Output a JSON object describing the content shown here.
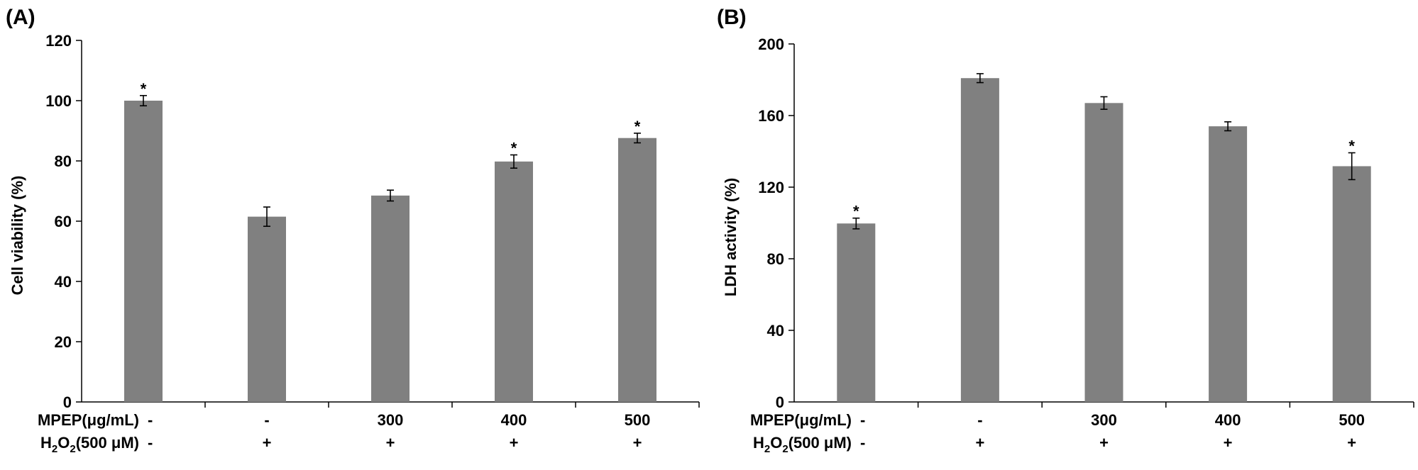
{
  "chart_data": [
    {
      "type": "bar",
      "panel_label": "(A)",
      "ylabel": "Cell viability (%)",
      "ylim": [
        0,
        120
      ],
      "yticks": [
        0,
        20,
        40,
        60,
        80,
        100,
        120
      ],
      "ytick_labels": [
        "0",
        "20",
        "40",
        "60",
        "80",
        "100",
        "120"
      ],
      "values": [
        100,
        61.5,
        68.5,
        79.8,
        87.6
      ],
      "errors": [
        1.7,
        3.2,
        1.8,
        2.2,
        1.6
      ],
      "significance": [
        "*",
        "",
        "",
        "*",
        "*"
      ],
      "mpep_label": "MPEP(μg/mL)",
      "h2o2_label_pre": "H",
      "h2o2_label_sub": "2",
      "h2o2_label_o": "O",
      "h2o2_label_post": "(500 μM)",
      "mpep_values": [
        "-",
        "-",
        "300",
        "400",
        "500"
      ],
      "h2o2_values": [
        "-",
        "+",
        "+",
        "+",
        "+"
      ],
      "bar_color": "#808080"
    },
    {
      "type": "bar",
      "panel_label": "(B)",
      "ylabel": "LDH activity (%)",
      "ylim": [
        0,
        200
      ],
      "yticks": [
        0,
        40,
        80,
        120,
        160,
        200
      ],
      "ytick_labels": [
        "0",
        "40",
        "80",
        "120",
        "160",
        "200"
      ],
      "values": [
        99.7,
        180.9,
        167,
        154,
        131.7
      ],
      "errors": [
        3.0,
        2.5,
        3.5,
        2.5,
        7.5
      ],
      "significance": [
        "*",
        "",
        "",
        "",
        "*"
      ],
      "mpep_label": "MPEP(μg/mL)",
      "h2o2_label_pre": "H",
      "h2o2_label_sub": "2",
      "h2o2_label_o": "O",
      "h2o2_label_post": "(500 μM)",
      "mpep_values": [
        "-",
        "-",
        "300",
        "400",
        "500"
      ],
      "h2o2_values": [
        "-",
        "+",
        "+",
        "+",
        "+"
      ],
      "bar_color": "#808080"
    }
  ]
}
